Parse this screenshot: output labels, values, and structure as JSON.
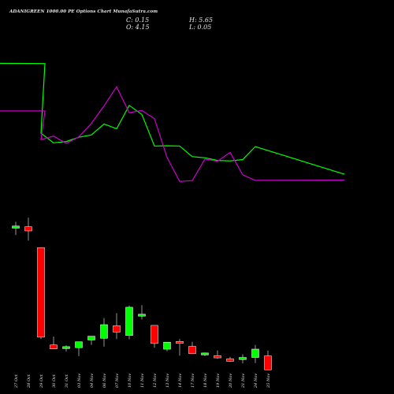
{
  "header": {
    "close": "C: 0.15",
    "open": "O: 4.15",
    "high": "H: 5.65",
    "low": "L: 0.05"
  },
  "chart_data": {
    "type": "candlestick",
    "title": "ADANIGREEN 1000.00 PE Options Chart MunafaSutra.com",
    "categories": [
      "27 Oct",
      "28 Oct",
      "29 Oct",
      "30 Oct",
      "31 Oct",
      "03 Nov",
      "04 Nov",
      "06 Nov",
      "07 Nov",
      "10 Nov",
      "11 Nov",
      "12 Nov",
      "13 Nov",
      "14 Nov",
      "17 Nov",
      "18 Nov",
      "19 Nov",
      "20 Nov",
      "21 Nov",
      "24 Nov",
      "25 Nov"
    ],
    "candles": [
      {
        "open": 40.8,
        "high": 42.6,
        "low": 38.8,
        "close": 41.4
      },
      {
        "open": 41.2,
        "high": 43.8,
        "low": 37.2,
        "close": 40.0
      },
      {
        "open": 35.2,
        "high": 35.3,
        "low": 9.0,
        "close": 9.5
      },
      {
        "open": 7.3,
        "high": 9.7,
        "low": 6.4,
        "close": 6.2
      },
      {
        "open": 6.6,
        "high": 7.2,
        "low": 5.4,
        "close": 6.8
      },
      {
        "open": 6.5,
        "high": 7.9,
        "low": 4.1,
        "close": 8.2
      },
      {
        "open": 8.7,
        "high": 9.4,
        "low": 7.3,
        "close": 9.8
      },
      {
        "open": 9.2,
        "high": 15.0,
        "low": 6.8,
        "close": 13.1
      },
      {
        "open": 12.8,
        "high": 16.4,
        "low": 9.0,
        "close": 11.0
      },
      {
        "open": 10.0,
        "high": 18.6,
        "low": 8.9,
        "close": 18.1
      },
      {
        "open": 15.7,
        "high": 18.7,
        "low": 14.6,
        "close": 16.1
      },
      {
        "open": 12.9,
        "high": 12.9,
        "low": 6.5,
        "close": 7.7
      },
      {
        "open": 6.1,
        "high": 8.1,
        "low": 5.5,
        "close": 8.1
      },
      {
        "open": 8.3,
        "high": 9.0,
        "low": 4.2,
        "close": 7.8
      },
      {
        "open": 6.9,
        "high": 8.2,
        "low": 5.0,
        "close": 4.8
      },
      {
        "open": 4.8,
        "high": 5.1,
        "low": 4.1,
        "close": 5.0
      },
      {
        "open": 4.2,
        "high": 5.7,
        "low": 3.3,
        "close": 3.6
      },
      {
        "open": 3.3,
        "high": 3.9,
        "low": 2.4,
        "close": 2.6
      },
      {
        "open": 3.1,
        "high": 4.6,
        "low": 2.0,
        "close": 3.7
      },
      {
        "open": 3.7,
        "high": 7.3,
        "low": 2.1,
        "close": 6.1
      },
      {
        "open": 4.15,
        "high": 5.65,
        "low": 0.05,
        "close": 0.15
      }
    ],
    "ylim": [
      0.0,
      47.0
    ],
    "series": [
      {
        "color": "#00ff00",
        "values": [
          47.3,
          47.2,
          21.0,
          17.4,
          17.9,
          19.5,
          20.4,
          24.5,
          22.7,
          31.5,
          28.1,
          16.2,
          16.3,
          16.2,
          12.2,
          11.8,
          10.8,
          10.6,
          11.1,
          16.0,
          5.6
        ]
      },
      {
        "color": "#cc00cc",
        "values": [
          29.4,
          29.4,
          18.6,
          19.9,
          17.2,
          19.6,
          24.7,
          31.3,
          38.5,
          28.7,
          29.6,
          26.5,
          11.9,
          2.9,
          3.2,
          11.3,
          10.5,
          13.8,
          5.4,
          3.3,
          3.4
        ]
      }
    ],
    "line_ylim": [
      0,
      48
    ],
    "colors": {
      "up": "#00ff00",
      "down": "#ff0000",
      "background": "#000000",
      "text": "#e8e8e8",
      "wick": "#bbbbbb"
    }
  }
}
